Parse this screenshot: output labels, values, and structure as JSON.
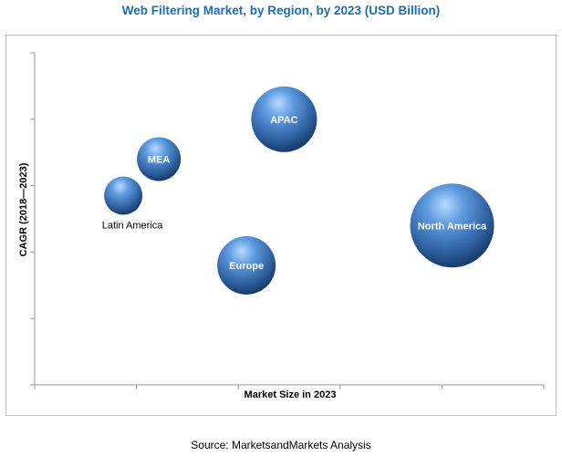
{
  "title": "Web Filtering Market, by Region, by 2023 (USD Billion)",
  "source": "Source: MarketsandMarkets Analysis",
  "colors": {
    "title": "#1a6fb8",
    "bubble_light": "#a9cdf2",
    "bubble_mid": "#3f7cc4",
    "bubble_dark": "#0e2f5e",
    "axis": "#999999"
  },
  "chart_data": {
    "type": "scatter",
    "title": "Web Filtering Market, by Region, by 2023 (USD Billion)",
    "xlabel": "Market Size in 2023",
    "ylabel": "CAGR (2018—2023)",
    "xlim": [
      0,
      5
    ],
    "ylim": [
      0,
      5
    ],
    "grid": false,
    "series": [
      {
        "points": [
          {
            "label": "North America",
            "x": 4.1,
            "y": 2.4,
            "size": 46,
            "label_position": "inside"
          },
          {
            "label": "APAC",
            "x": 2.45,
            "y": 4.0,
            "size": 36,
            "label_position": "inside"
          },
          {
            "label": "Europe",
            "x": 2.08,
            "y": 1.8,
            "size": 32,
            "label_position": "inside"
          },
          {
            "label": "MEA",
            "x": 1.22,
            "y": 3.4,
            "size": 24,
            "label_position": "inside"
          },
          {
            "label": "Latin America",
            "x": 0.87,
            "y": 2.85,
            "size": 21,
            "label_position": "below"
          }
        ]
      }
    ]
  }
}
